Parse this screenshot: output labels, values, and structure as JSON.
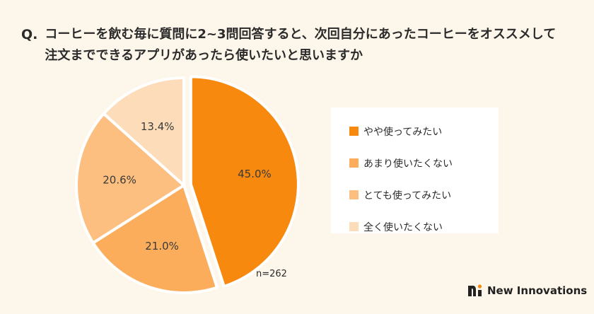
{
  "question": {
    "prefix": "Q.",
    "line1": "コーヒーを飲む毎に質問に2~3問回答すると、次回自分にあったコーヒーをオススメして",
    "line2": "注文までできるアプリがあったら使いたいと思いますか"
  },
  "chart_data": {
    "type": "pie",
    "categories": [
      "やや使ってみたい",
      "あまり使いたくない",
      "とても使ってみたい",
      "全く使いたくない"
    ],
    "values": [
      45.0,
      21.0,
      20.6,
      13.4
    ],
    "value_labels": [
      "45.0%",
      "21.0%",
      "20.6%",
      "13.4%"
    ],
    "colors": [
      "#f7890f",
      "#fbad5c",
      "#fcbf7f",
      "#fddcb9"
    ],
    "exploded_index": 0,
    "legend_placement": "right",
    "sample_size": "n=262"
  },
  "logo": {
    "text": "New Innovations",
    "accent": "#f7890f"
  }
}
